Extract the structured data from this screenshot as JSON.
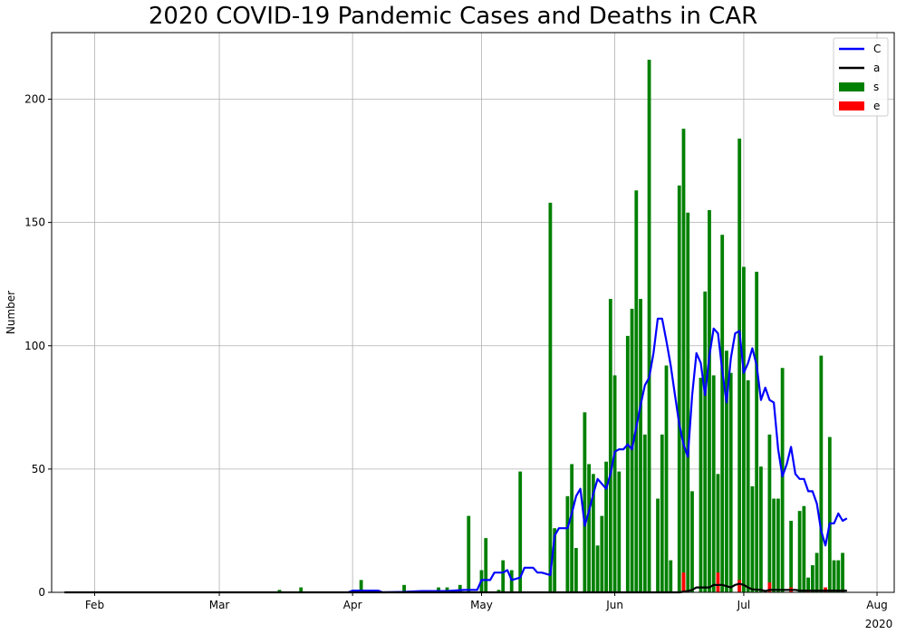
{
  "chart_data": {
    "type": "bar",
    "title": "2020 COVID-19 Pandemic Cases and Deaths in CAR",
    "ylabel": "Number",
    "xlabel": "",
    "year_label": "2020",
    "xlim": [
      "2020-01-22",
      "2020-08-05"
    ],
    "ylim": [
      0,
      227
    ],
    "grid": true,
    "legend_position": "top-right",
    "x_ticks": [
      {
        "label": "Feb",
        "date": "2020-02-01"
      },
      {
        "label": "Mar",
        "date": "2020-03-01"
      },
      {
        "label": "Apr",
        "date": "2020-04-01"
      },
      {
        "label": "May",
        "date": "2020-05-01"
      },
      {
        "label": "Jun",
        "date": "2020-06-01"
      },
      {
        "label": "Jul",
        "date": "2020-07-01"
      },
      {
        "label": "Aug",
        "date": "2020-08-01"
      }
    ],
    "y_ticks": [
      0,
      50,
      100,
      150,
      200
    ],
    "colors": {
      "cases_bar": "#008000",
      "deaths_bar": "#ff0000",
      "cases_avg": "#0000ff",
      "deaths_avg": "#000000",
      "grid": "#b0b0b0"
    },
    "series": [
      {
        "name": "C",
        "type": "line",
        "color": "#0000ff",
        "points": [
          [
            "2020-03-31",
            0
          ],
          [
            "2020-04-01",
            0.7
          ],
          [
            "2020-04-07",
            0.7
          ],
          [
            "2020-04-08",
            0
          ],
          [
            "2020-04-13",
            0.2
          ],
          [
            "2020-04-17",
            0.5
          ],
          [
            "2020-04-23",
            0.5
          ],
          [
            "2020-04-27",
            1
          ],
          [
            "2020-04-30",
            1
          ],
          [
            "2020-05-01",
            5
          ],
          [
            "2020-05-03",
            5
          ],
          [
            "2020-05-04",
            8
          ],
          [
            "2020-05-06",
            8
          ],
          [
            "2020-05-07",
            9
          ],
          [
            "2020-05-08",
            5
          ],
          [
            "2020-05-10",
            6
          ],
          [
            "2020-05-11",
            10
          ],
          [
            "2020-05-13",
            10
          ],
          [
            "2020-05-14",
            8
          ],
          [
            "2020-05-15",
            8
          ],
          [
            "2020-05-17",
            7
          ],
          [
            "2020-05-18",
            23
          ],
          [
            "2020-05-19",
            26
          ],
          [
            "2020-05-21",
            26
          ],
          [
            "2020-05-22",
            32
          ],
          [
            "2020-05-23",
            39
          ],
          [
            "2020-05-24",
            42
          ],
          [
            "2020-05-25",
            27
          ],
          [
            "2020-05-26",
            33
          ],
          [
            "2020-05-27",
            40
          ],
          [
            "2020-05-28",
            46
          ],
          [
            "2020-05-29",
            44
          ],
          [
            "2020-05-30",
            42
          ],
          [
            "2020-05-31",
            48
          ],
          [
            "2020-06-01",
            57
          ],
          [
            "2020-06-02",
            58
          ],
          [
            "2020-06-03",
            58
          ],
          [
            "2020-06-04",
            60
          ],
          [
            "2020-06-05",
            58
          ],
          [
            "2020-06-06",
            67
          ],
          [
            "2020-06-07",
            76
          ],
          [
            "2020-06-08",
            84
          ],
          [
            "2020-06-09",
            87
          ],
          [
            "2020-06-10",
            97
          ],
          [
            "2020-06-11",
            111
          ],
          [
            "2020-06-12",
            111
          ],
          [
            "2020-06-13",
            102
          ],
          [
            "2020-06-14",
            92
          ],
          [
            "2020-06-15",
            80
          ],
          [
            "2020-06-16",
            68
          ],
          [
            "2020-06-17",
            60
          ],
          [
            "2020-06-18",
            55
          ],
          [
            "2020-06-19",
            80
          ],
          [
            "2020-06-20",
            97
          ],
          [
            "2020-06-21",
            93
          ],
          [
            "2020-06-22",
            80
          ],
          [
            "2020-06-23",
            96
          ],
          [
            "2020-06-24",
            107
          ],
          [
            "2020-06-25",
            105
          ],
          [
            "2020-06-26",
            90
          ],
          [
            "2020-06-27",
            77
          ],
          [
            "2020-06-28",
            95
          ],
          [
            "2020-06-29",
            105
          ],
          [
            "2020-06-30",
            106
          ],
          [
            "2020-07-01",
            89
          ],
          [
            "2020-07-02",
            93
          ],
          [
            "2020-07-03",
            99
          ],
          [
            "2020-07-04",
            92
          ],
          [
            "2020-07-05",
            78
          ],
          [
            "2020-07-06",
            83
          ],
          [
            "2020-07-07",
            78
          ],
          [
            "2020-07-08",
            77
          ],
          [
            "2020-07-09",
            58
          ],
          [
            "2020-07-10",
            47
          ],
          [
            "2020-07-11",
            52
          ],
          [
            "2020-07-12",
            59
          ],
          [
            "2020-07-13",
            48
          ],
          [
            "2020-07-14",
            46
          ],
          [
            "2020-07-15",
            46
          ],
          [
            "2020-07-16",
            41
          ],
          [
            "2020-07-17",
            41
          ],
          [
            "2020-07-18",
            36
          ],
          [
            "2020-07-19",
            25
          ],
          [
            "2020-07-20",
            19
          ],
          [
            "2020-07-21",
            28
          ],
          [
            "2020-07-22",
            28
          ],
          [
            "2020-07-23",
            32
          ],
          [
            "2020-07-24",
            29
          ],
          [
            "2020-07-25",
            30
          ]
        ]
      },
      {
        "name": "a",
        "type": "line",
        "color": "#000000",
        "points": [
          [
            "2020-01-25",
            0
          ],
          [
            "2020-06-16",
            0
          ],
          [
            "2020-06-18",
            0.5
          ],
          [
            "2020-06-19",
            1
          ],
          [
            "2020-06-20",
            2
          ],
          [
            "2020-06-23",
            2
          ],
          [
            "2020-06-24",
            3
          ],
          [
            "2020-06-26",
            3
          ],
          [
            "2020-06-27",
            2.5
          ],
          [
            "2020-06-28",
            2
          ],
          [
            "2020-06-29",
            3
          ],
          [
            "2020-06-30",
            3.5
          ],
          [
            "2020-07-01",
            3
          ],
          [
            "2020-07-02",
            2
          ],
          [
            "2020-07-03",
            1.2
          ],
          [
            "2020-07-05",
            1
          ],
          [
            "2020-07-06",
            0.5
          ],
          [
            "2020-07-07",
            1
          ],
          [
            "2020-07-13",
            1
          ],
          [
            "2020-07-14",
            0.7
          ],
          [
            "2020-07-25",
            0.7
          ]
        ]
      },
      {
        "name": "s",
        "type": "bar",
        "color": "#008000",
        "points": [
          [
            "2020-03-15",
            1
          ],
          [
            "2020-03-20",
            2
          ],
          [
            "2020-04-03",
            5
          ],
          [
            "2020-04-13",
            3
          ],
          [
            "2020-04-21",
            2
          ],
          [
            "2020-04-23",
            2
          ],
          [
            "2020-04-26",
            3
          ],
          [
            "2020-04-28",
            31
          ],
          [
            "2020-05-01",
            9
          ],
          [
            "2020-05-02",
            22
          ],
          [
            "2020-05-05",
            1
          ],
          [
            "2020-05-06",
            13
          ],
          [
            "2020-05-08",
            9
          ],
          [
            "2020-05-10",
            49
          ],
          [
            "2020-05-17",
            158
          ],
          [
            "2020-05-18",
            26
          ],
          [
            "2020-05-21",
            39
          ],
          [
            "2020-05-22",
            52
          ],
          [
            "2020-05-23",
            18
          ],
          [
            "2020-05-25",
            73
          ],
          [
            "2020-05-26",
            52
          ],
          [
            "2020-05-27",
            48
          ],
          [
            "2020-05-28",
            19
          ],
          [
            "2020-05-29",
            31
          ],
          [
            "2020-05-30",
            53
          ],
          [
            "2020-05-31",
            119
          ],
          [
            "2020-06-01",
            88
          ],
          [
            "2020-06-02",
            49
          ],
          [
            "2020-06-04",
            104
          ],
          [
            "2020-06-05",
            115
          ],
          [
            "2020-06-06",
            163
          ],
          [
            "2020-06-07",
            119
          ],
          [
            "2020-06-08",
            64
          ],
          [
            "2020-06-09",
            216
          ],
          [
            "2020-06-11",
            38
          ],
          [
            "2020-06-12",
            64
          ],
          [
            "2020-06-13",
            92
          ],
          [
            "2020-06-14",
            13
          ],
          [
            "2020-06-16",
            165
          ],
          [
            "2020-06-17",
            188
          ],
          [
            "2020-06-18",
            154
          ],
          [
            "2020-06-19",
            41
          ],
          [
            "2020-06-21",
            87
          ],
          [
            "2020-06-22",
            122
          ],
          [
            "2020-06-23",
            155
          ],
          [
            "2020-06-24",
            88
          ],
          [
            "2020-06-25",
            48
          ],
          [
            "2020-06-26",
            145
          ],
          [
            "2020-06-27",
            98
          ],
          [
            "2020-06-28",
            89
          ],
          [
            "2020-06-30",
            184
          ],
          [
            "2020-07-01",
            132
          ],
          [
            "2020-07-02",
            86
          ],
          [
            "2020-07-03",
            43
          ],
          [
            "2020-07-04",
            130
          ],
          [
            "2020-07-05",
            51
          ],
          [
            "2020-07-07",
            64
          ],
          [
            "2020-07-08",
            38
          ],
          [
            "2020-07-09",
            38
          ],
          [
            "2020-07-10",
            91
          ],
          [
            "2020-07-12",
            29
          ],
          [
            "2020-07-14",
            33
          ],
          [
            "2020-07-15",
            35
          ],
          [
            "2020-07-16",
            6
          ],
          [
            "2020-07-17",
            11
          ],
          [
            "2020-07-18",
            16
          ],
          [
            "2020-07-19",
            96
          ],
          [
            "2020-07-21",
            63
          ],
          [
            "2020-07-22",
            13
          ],
          [
            "2020-07-23",
            13
          ],
          [
            "2020-07-24",
            16
          ]
        ]
      },
      {
        "name": "e",
        "type": "bar",
        "color": "#ff0000",
        "points": [
          [
            "2020-06-17",
            8
          ],
          [
            "2020-06-25",
            8
          ],
          [
            "2020-06-30",
            5
          ],
          [
            "2020-07-07",
            4
          ],
          [
            "2020-07-12",
            2
          ],
          [
            "2020-07-16",
            1
          ],
          [
            "2020-07-20",
            2
          ]
        ]
      }
    ]
  }
}
